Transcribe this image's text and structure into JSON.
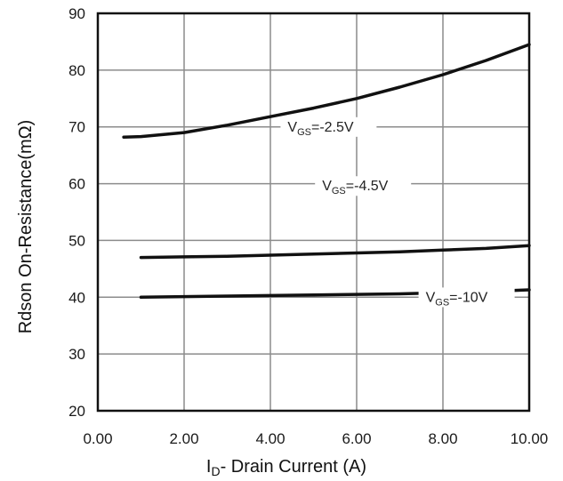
{
  "chart_data": {
    "type": "line",
    "title": "",
    "xlabel_main": "I",
    "xlabel_sub": "D",
    "xlabel_rest": "- Drain Current (A)",
    "ylabel": "Rdson On-Resistance(mΩ)",
    "xlim": [
      0,
      10
    ],
    "ylim": [
      20,
      90
    ],
    "xticks": [
      "0.00",
      "2.00",
      "4.00",
      "6.00",
      "8.00",
      "10.00"
    ],
    "xtick_values": [
      0,
      2,
      4,
      6,
      8,
      10
    ],
    "yticks": [
      "20",
      "30",
      "40",
      "50",
      "60",
      "70",
      "80",
      "90"
    ],
    "ytick_values": [
      20,
      30,
      40,
      50,
      60,
      70,
      80,
      90
    ],
    "grid": true,
    "series": [
      {
        "label_main": "V",
        "label_sub": "GS",
        "label_rest": "=-2.5V",
        "label_at": [
          4.4,
          69.2
        ],
        "x": [
          0.6,
          1,
          2,
          3,
          4,
          5,
          6,
          7,
          8,
          9,
          10
        ],
        "y": [
          68.2,
          68.3,
          69.0,
          70.3,
          71.8,
          73.3,
          75.0,
          77.0,
          79.2,
          81.7,
          84.5
        ]
      },
      {
        "label_main": "V",
        "label_sub": "GS",
        "label_rest": "=-4.5V",
        "label_at": [
          5.2,
          58.8
        ],
        "x": [
          1,
          2,
          3,
          4,
          5,
          6,
          7,
          8,
          9,
          10
        ],
        "y": [
          47.0,
          47.1,
          47.2,
          47.4,
          47.6,
          47.8,
          48.0,
          48.3,
          48.6,
          49.1
        ]
      },
      {
        "label_main": "V",
        "label_sub": "GS",
        "label_rest": "=-10V",
        "label_at": [
          7.6,
          39.2
        ],
        "x": [
          1,
          2,
          3,
          4,
          5,
          6,
          7,
          8,
          9,
          10
        ],
        "y": [
          40.0,
          40.1,
          40.2,
          40.3,
          40.4,
          40.5,
          40.6,
          40.8,
          41.0,
          41.3
        ]
      }
    ]
  }
}
